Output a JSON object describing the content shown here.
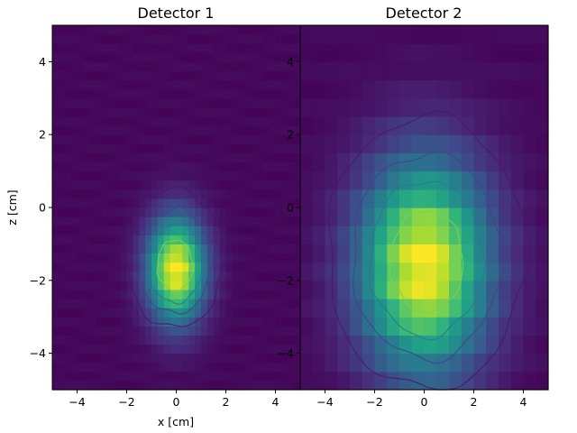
{
  "chart_data": [
    {
      "type": "heatmap",
      "title": "Detector 1",
      "xlabel": "x [cm]",
      "ylabel": "z [cm]",
      "xlim": [
        -5,
        5
      ],
      "ylim": [
        -5,
        5
      ],
      "xticks": [
        -4,
        -2,
        0,
        2,
        4
      ],
      "yticks": [
        -4,
        -2,
        0,
        2,
        4
      ],
      "colormap": "viridis",
      "bins": 40,
      "peak": {
        "x": 0.0,
        "z": -1.7
      },
      "spread": {
        "sx": 0.8,
        "sz": 1.0
      },
      "contour_levels": [
        0.12,
        0.3,
        0.5,
        0.75
      ],
      "outer_contour": {
        "xmin": -2.0,
        "xmax": 1.9,
        "zmin": -3.3,
        "zmax": 0.5
      },
      "grid": false
    },
    {
      "type": "heatmap",
      "title": "Detector 2",
      "xlabel": "",
      "ylabel": "",
      "xlim": [
        -5,
        5
      ],
      "ylim": [
        -5,
        5
      ],
      "xticks": [
        -4,
        -2,
        0,
        2,
        4
      ],
      "yticks": [
        -4,
        -2,
        0,
        2,
        4
      ],
      "colormap": "viridis",
      "bins": 20,
      "peak": {
        "x": 0.0,
        "z": -1.6
      },
      "spread": {
        "sx": 1.8,
        "sz": 2.0
      },
      "contour_levels": [
        0.12,
        0.3,
        0.5,
        0.75
      ],
      "outer_contour": {
        "xmin": -3.9,
        "xmax": 4.1,
        "zmin": -5.0,
        "zmax": 2.5
      },
      "grid": false
    }
  ]
}
